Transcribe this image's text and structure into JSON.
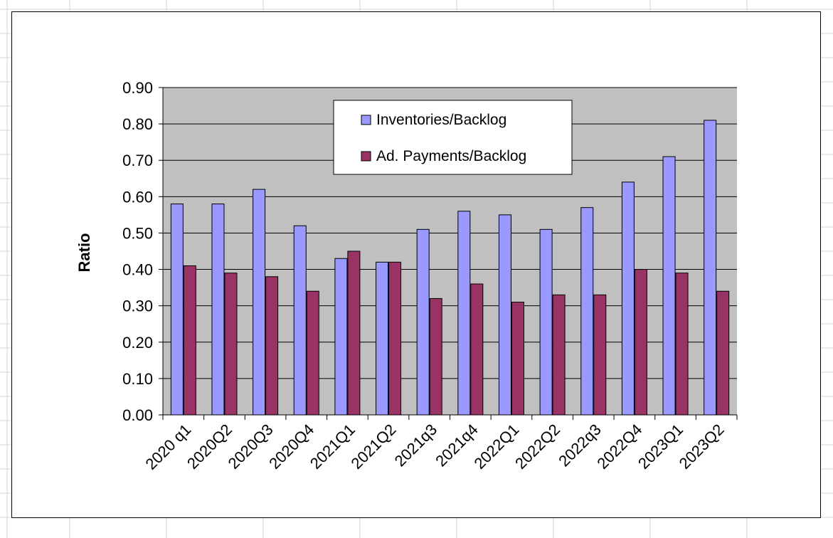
{
  "chart_data": {
    "type": "bar",
    "title": "",
    "xlabel": "",
    "ylabel": "Ratio",
    "ylim": [
      0,
      0.9
    ],
    "y_ticks": [
      "0.00",
      "0.10",
      "0.20",
      "0.30",
      "0.40",
      "0.50",
      "0.60",
      "0.70",
      "0.80",
      "0.90"
    ],
    "grid": true,
    "legend_position": "top-center",
    "plot_background": "#C0C0C0",
    "categories": [
      "2020 q1",
      "2020Q2",
      "2020Q3",
      "2020Q4",
      "2021Q1",
      "2021Q2",
      "2021q3",
      "2021q4",
      "2022Q1",
      "2022Q2",
      "2022q3",
      "2022Q4",
      "2023Q1",
      "2023Q2"
    ],
    "series": [
      {
        "name": "Inventories/Backlog",
        "color": "#9999FF",
        "values": [
          0.58,
          0.58,
          0.62,
          0.52,
          0.43,
          0.42,
          0.51,
          0.56,
          0.55,
          0.51,
          0.57,
          0.64,
          0.71,
          0.81
        ]
      },
      {
        "name": "Ad. Payments/Backlog",
        "color": "#993366",
        "values": [
          0.41,
          0.39,
          0.38,
          0.34,
          0.45,
          0.42,
          0.32,
          0.36,
          0.31,
          0.33,
          0.33,
          0.4,
          0.39,
          0.34
        ]
      }
    ]
  }
}
